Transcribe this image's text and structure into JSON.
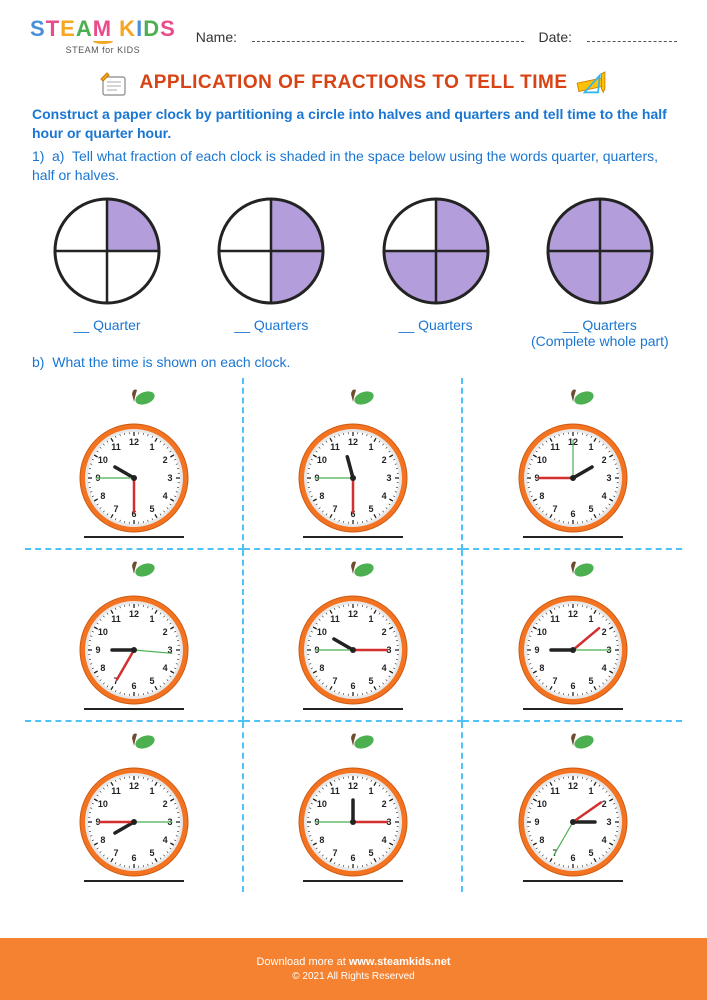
{
  "header": {
    "logo_text": "STEAM KIDS",
    "logo_sub": "STEAM for KIDS",
    "name_label": "Name:",
    "date_label": "Date:"
  },
  "title": "APPLICATION OF FRACTIONS TO TELL TIME",
  "instructions": "Construct a paper clock by partitioning a circle into halves and quarters and tell time to the half hour or quarter hour.",
  "q1a": {
    "number": "1)",
    "letter": "a)",
    "text": "Tell what fraction of each clock is shaded in the space below using the words quarter, quarters, half or halves."
  },
  "fractions": {
    "shade_color": "#b39ddb",
    "stroke_color": "#232323",
    "items": [
      {
        "shaded_quarters": [
          0
        ],
        "label": "Quarter",
        "extra": ""
      },
      {
        "shaded_quarters": [
          0,
          1
        ],
        "label": "Quarters",
        "extra": ""
      },
      {
        "shaded_quarters": [
          0,
          1,
          2
        ],
        "label": "Quarters",
        "extra": ""
      },
      {
        "shaded_quarters": [
          0,
          1,
          2,
          3
        ],
        "label": "Quarters",
        "extra": "(Complete whole part)"
      }
    ],
    "blank": "__ "
  },
  "q1b": {
    "letter": "b)",
    "text": "What the time is shown on each clock."
  },
  "clocks": {
    "orange_color": "#f37321",
    "orange_dark": "#cc5a12",
    "face_color": "#ffffff",
    "rim_color": "#e8e8e8",
    "tick_color": "#222222",
    "hour_hand_color": "#222222",
    "minute_hand_color": "#d32f2f",
    "second_hand_color": "#4caf50",
    "leaf_color": "#4caf50",
    "stem_color": "#6d4c2f",
    "items": [
      {
        "hour_angle": 300,
        "minute_angle": 180,
        "second_angle": 270
      },
      {
        "hour_angle": 345,
        "minute_angle": 180,
        "second_angle": 270
      },
      {
        "hour_angle": 60,
        "minute_angle": 270,
        "second_angle": 0
      },
      {
        "hour_angle": 270,
        "minute_angle": 210,
        "second_angle": 95
      },
      {
        "hour_angle": 300,
        "minute_angle": 90,
        "second_angle": 270
      },
      {
        "hour_angle": 270,
        "minute_angle": 50,
        "second_angle": 90
      },
      {
        "hour_angle": 240,
        "minute_angle": 270,
        "second_angle": 90
      },
      {
        "hour_angle": 0,
        "minute_angle": 90,
        "second_angle": 270
      },
      {
        "hour_angle": 90,
        "minute_angle": 55,
        "second_angle": 210
      }
    ]
  },
  "footer": {
    "download_prefix": "Download more at ",
    "site": "www.steamkids.net",
    "copyright": "© 2021 All Rights Reserved"
  },
  "colors": {
    "title_color": "#d84315",
    "instruction_color": "#1976d2",
    "dash_color": "#4fc3f7",
    "footer_bg": "#f58230"
  }
}
